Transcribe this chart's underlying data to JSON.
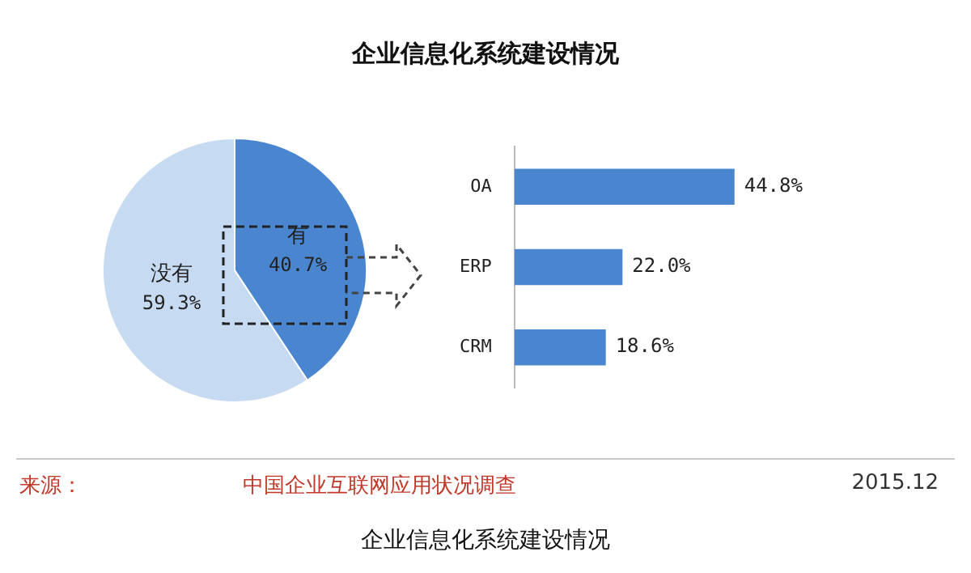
{
  "chart_data": [
    {
      "type": "pie",
      "title": "企业信息化系统建设情况",
      "categories": [
        "有",
        "没有"
      ],
      "values": [
        40.7,
        59.3
      ],
      "colors": [
        "#4a86d0",
        "#c6daf1"
      ],
      "value_labels": [
        "40.7%",
        "59.3%"
      ],
      "legend": false,
      "annotations": [
        "来源：",
        "中国企业互联网应用状况调查",
        "2015.12",
        "企业信息化系统建设情况"
      ]
    },
    {
      "type": "bar",
      "orientation": "horizontal",
      "categories": [
        "OA",
        "ERP",
        "CRM"
      ],
      "values": [
        44.8,
        22.0,
        18.6
      ],
      "color": "#4a86d0",
      "value_labels": [
        "44.8%",
        "22.0%",
        "18.6%"
      ],
      "tick_labels": "y",
      "legend": false
    }
  ]
}
